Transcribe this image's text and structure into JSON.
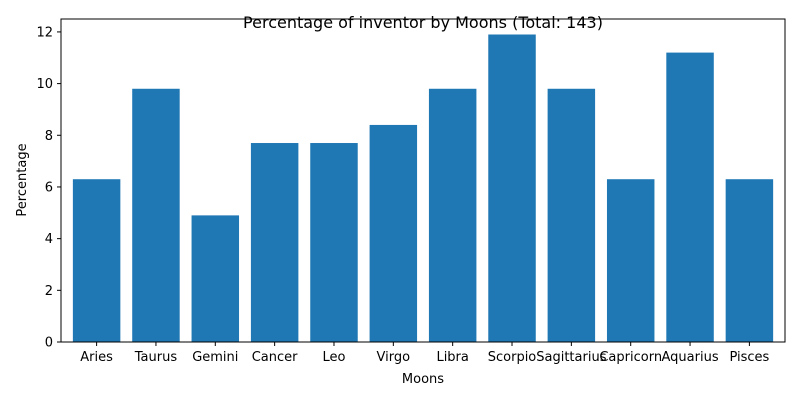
{
  "chart_data": {
    "type": "bar",
    "title": "Percentage of inventor by Moons (Total: 143)",
    "xlabel": "Moons",
    "ylabel": "Percentage",
    "categories": [
      "Aries",
      "Taurus",
      "Gemini",
      "Cancer",
      "Leo",
      "Virgo",
      "Libra",
      "Scorpio",
      "Sagittarius",
      "Capricorn",
      "Aquarius",
      "Pisces"
    ],
    "values": [
      6.3,
      9.8,
      4.9,
      7.7,
      7.7,
      8.4,
      9.8,
      11.9,
      9.8,
      6.3,
      11.2,
      6.3
    ],
    "ylim": [
      0,
      12.5
    ],
    "yticks": [
      0,
      2,
      4,
      6,
      8,
      10,
      12
    ],
    "grid": false,
    "legend": "none",
    "bar_color": "#1f77b4"
  }
}
